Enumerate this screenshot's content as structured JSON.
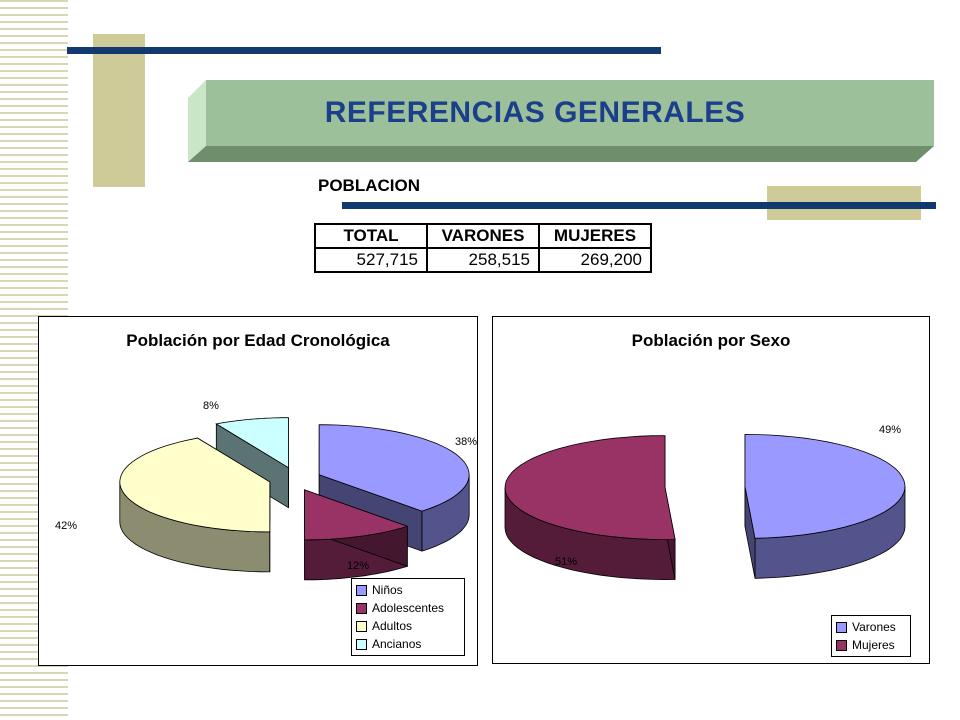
{
  "slide": {
    "title": "REFERENCIAS GENERALES",
    "section_label": "POBLACION",
    "colors": {
      "banner": "#9cc19a",
      "navy": "#123a6e",
      "tan": "#cfcb98"
    }
  },
  "population_table": {
    "headers": [
      "TOTAL",
      "VARONES",
      "MUJERES"
    ],
    "values": [
      "527,715",
      "258,515",
      "269,200"
    ]
  },
  "chart_data": [
    {
      "type": "pie",
      "title": "Población por Edad Cronológica",
      "categories": [
        "Niños",
        "Adolescentes",
        "Adultos",
        "Ancianos"
      ],
      "values": [
        38,
        12,
        42,
        8
      ],
      "labels": [
        "38%",
        "12%",
        "42%",
        "8%"
      ],
      "colors": [
        "#9999ff",
        "#993366",
        "#ffffcc",
        "#ccffff"
      ],
      "legend_position": "bottom-right",
      "exploded": true,
      "three_d": true
    },
    {
      "type": "pie",
      "title": "Población por Sexo",
      "categories": [
        "Varones",
        "Mujeres"
      ],
      "values": [
        49,
        51
      ],
      "labels": [
        "49%",
        "51%"
      ],
      "colors": [
        "#9999ff",
        "#993366"
      ],
      "legend_position": "bottom-right",
      "exploded": true,
      "three_d": true
    }
  ]
}
